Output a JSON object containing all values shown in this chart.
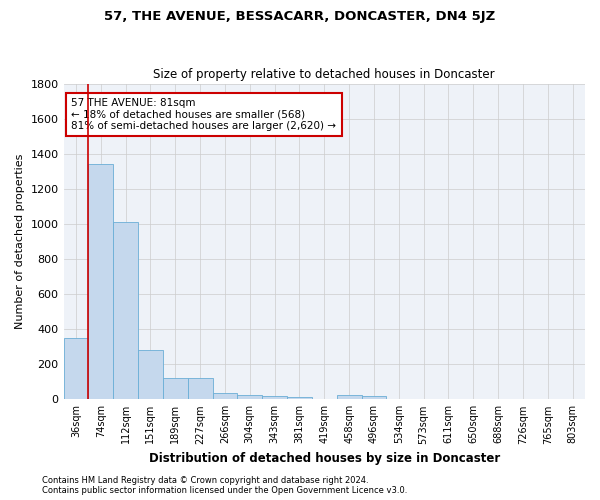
{
  "title": "57, THE AVENUE, BESSACARR, DONCASTER, DN4 5JZ",
  "subtitle": "Size of property relative to detached houses in Doncaster",
  "xlabel": "Distribution of detached houses by size in Doncaster",
  "ylabel": "Number of detached properties",
  "footnote1": "Contains HM Land Registry data © Crown copyright and database right 2024.",
  "footnote2": "Contains public sector information licensed under the Open Government Licence v3.0.",
  "categories": [
    "36sqm",
    "74sqm",
    "112sqm",
    "151sqm",
    "189sqm",
    "227sqm",
    "266sqm",
    "304sqm",
    "343sqm",
    "381sqm",
    "419sqm",
    "458sqm",
    "496sqm",
    "534sqm",
    "573sqm",
    "611sqm",
    "650sqm",
    "688sqm",
    "726sqm",
    "765sqm",
    "803sqm"
  ],
  "values": [
    350,
    1340,
    1010,
    280,
    120,
    120,
    35,
    25,
    20,
    15,
    0,
    25,
    20,
    0,
    0,
    0,
    0,
    0,
    0,
    0,
    0
  ],
  "bar_color": "#c5d8ed",
  "bar_edge_color": "#6aaed6",
  "grid_color": "#cccccc",
  "bg_color": "#eef2f8",
  "annotation_line1": "57 THE AVENUE: 81sqm",
  "annotation_line2": "← 18% of detached houses are smaller (568)",
  "annotation_line3": "81% of semi-detached houses are larger (2,620) →",
  "annotation_box_color": "#ffffff",
  "annotation_border_color": "#cc0000",
  "vline_color": "#cc0000",
  "vline_x_index": 1,
  "bar_width": 1.0,
  "ylim": [
    0,
    1800
  ],
  "yticks": [
    0,
    200,
    400,
    600,
    800,
    1000,
    1200,
    1400,
    1600,
    1800
  ]
}
